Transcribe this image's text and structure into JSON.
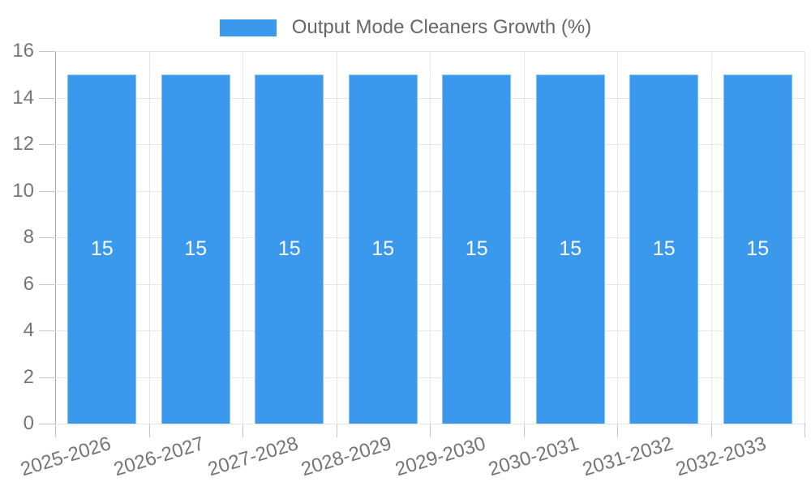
{
  "chart_data": {
    "type": "bar",
    "title": "Output Mode Cleaners Growth (%)",
    "categories": [
      "2025-2026",
      "2026-2027",
      "2027-2028",
      "2028-2029",
      "2029-2030",
      "2030-2031",
      "2031-2032",
      "2032-2033"
    ],
    "values": [
      15,
      15,
      15,
      15,
      15,
      15,
      15,
      15
    ],
    "bar_labels": [
      "15",
      "15",
      "15",
      "15",
      "15",
      "15",
      "15",
      "15"
    ],
    "ylim": [
      0,
      16
    ],
    "yticks": [
      0,
      2,
      4,
      6,
      8,
      10,
      12,
      14,
      16
    ],
    "xlabel": "",
    "ylabel": "",
    "grid": true,
    "legend_position": "top",
    "colors": {
      "bar": "#3a99ec",
      "bar_border": "rgba(255,255,255,0.4)",
      "bar_label": "#ffffff",
      "grid": "#e5e5e5",
      "axis": "#a8a8a8",
      "tick_mark": "#c4c4c4",
      "tick_text": "#757575",
      "legend_text": "#666666",
      "background": "#ffffff"
    }
  }
}
